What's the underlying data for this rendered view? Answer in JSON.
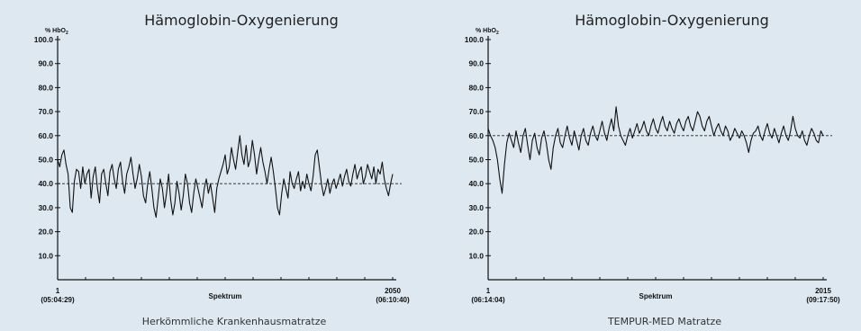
{
  "chart_data": [
    {
      "type": "line",
      "title": "Hämoglobin-Oxygenierung",
      "ylabel": "% HbO",
      "ylabel_sub": "2",
      "xlabel": "Spektrum",
      "caption": "Herkömmliche Krankenhausmatratze",
      "ylim": [
        0,
        100
      ],
      "yticks": [
        "10.0",
        "20.0",
        "30.0",
        "40.0",
        "50.0",
        "60.0",
        "70.0",
        "80.0",
        "90.0",
        "100.0"
      ],
      "xlim": [
        1,
        2050
      ],
      "x_start": {
        "value": "1",
        "time": "(05:04:29)"
      },
      "x_end": {
        "value": "2050",
        "time": "(06:10:40)"
      },
      "reference_line": 40,
      "grid": false,
      "series": [
        {
          "values": [
            50,
            47,
            52,
            54,
            48,
            44,
            30,
            28,
            41,
            46,
            45,
            38,
            47,
            40,
            44,
            46,
            34,
            43,
            47,
            38,
            32,
            44,
            46,
            40,
            35,
            45,
            48,
            42,
            38,
            46,
            49,
            41,
            36,
            44,
            47,
            51,
            44,
            38,
            42,
            48,
            43,
            35,
            32,
            40,
            45,
            38,
            30,
            26,
            34,
            42,
            38,
            30,
            36,
            44,
            33,
            27,
            32,
            41,
            36,
            29,
            35,
            44,
            40,
            32,
            28,
            36,
            42,
            38,
            34,
            30,
            38,
            42,
            36,
            40,
            34,
            28,
            38,
            42,
            45,
            48,
            52,
            44,
            47,
            55,
            50,
            46,
            53,
            60,
            52,
            48,
            56,
            47,
            50,
            58,
            52,
            44,
            50,
            55,
            49,
            45,
            40,
            46,
            51,
            45,
            38,
            30,
            27,
            36,
            42,
            38,
            34,
            45,
            40,
            38,
            42,
            45,
            37,
            41,
            38,
            44,
            40,
            37,
            43,
            52,
            54,
            47,
            40,
            35,
            38,
            42,
            36,
            40,
            42,
            38,
            41,
            44,
            39,
            43,
            46,
            41,
            39,
            44,
            48,
            42,
            45,
            47,
            40,
            43,
            48,
            45,
            42,
            47,
            40,
            46,
            44,
            49,
            42,
            38,
            35,
            40,
            44
          ]
        }
      ]
    },
    {
      "type": "line",
      "title": "Hämoglobin-Oxygenierung",
      "ylabel": "% HbO",
      "ylabel_sub": "2",
      "xlabel": "Spektrum",
      "caption": "TEMPUR-MED Matratze",
      "ylim": [
        0,
        100
      ],
      "yticks": [
        "10.0",
        "20.0",
        "30.0",
        "40.0",
        "50.0",
        "60.0",
        "70.0",
        "80.0",
        "90.0",
        "100.0"
      ],
      "xlim": [
        1,
        2015
      ],
      "x_start": {
        "value": "1",
        "time": "(06:14:04)"
      },
      "x_end": {
        "value": "2015",
        "time": "(09:17:50)"
      },
      "reference_line": 60,
      "grid": false,
      "series": [
        {
          "values": [
            63,
            60,
            58,
            55,
            50,
            42,
            36,
            48,
            57,
            61,
            58,
            55,
            62,
            57,
            53,
            60,
            63,
            56,
            50,
            58,
            61,
            55,
            52,
            59,
            62,
            57,
            50,
            46,
            55,
            60,
            63,
            57,
            55,
            60,
            64,
            59,
            56,
            62,
            58,
            54,
            60,
            63,
            58,
            56,
            61,
            64,
            60,
            58,
            62,
            66,
            61,
            58,
            63,
            67,
            62,
            72,
            64,
            60,
            58,
            56,
            60,
            63,
            59,
            62,
            65,
            61,
            63,
            66,
            62,
            60,
            64,
            67,
            63,
            61,
            65,
            68,
            64,
            62,
            66,
            63,
            61,
            65,
            67,
            64,
            62,
            66,
            68,
            64,
            62,
            66,
            70,
            68,
            64,
            62,
            66,
            68,
            64,
            60,
            63,
            65,
            62,
            60,
            64,
            62,
            58,
            60,
            63,
            61,
            59,
            62,
            60,
            57,
            53,
            58,
            61,
            62,
            64,
            60,
            58,
            62,
            65,
            61,
            59,
            63,
            60,
            57,
            61,
            64,
            60,
            58,
            62,
            68,
            63,
            60,
            59,
            62,
            58,
            56,
            60,
            63,
            61,
            58,
            57,
            62,
            60
          ]
        }
      ]
    }
  ]
}
